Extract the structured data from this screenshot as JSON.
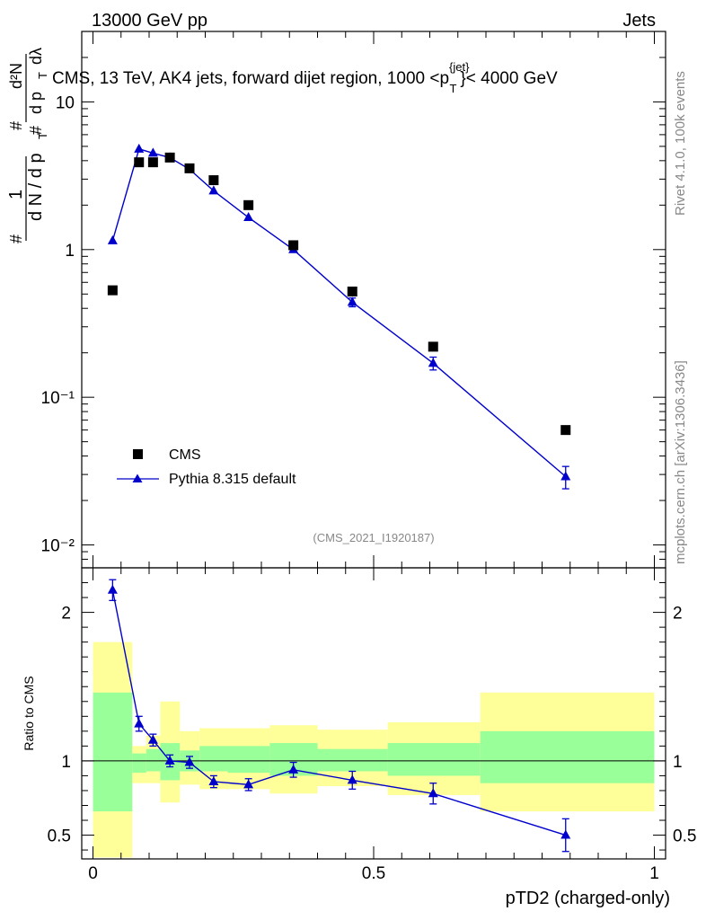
{
  "header": {
    "energy_label": "13000 GeV pp",
    "category_label": "Jets"
  },
  "side_labels": {
    "rivet": "Rivet 4.1.0,  100k events",
    "mcplots": "mcplots.cern.ch [arXiv:1306.3436]"
  },
  "y_axis_label": {
    "hash_top": "#",
    "one": "1",
    "denom": "d N / d p",
    "sub_t": "T",
    "hash_mid": "#",
    "d2n": "d²N",
    "hash_right": "#",
    "dpt_dl": "d p",
    "sub_t2": "T",
    "dlambda": "dλ"
  },
  "chart_data": [
    {
      "type": "scatter",
      "title": "CMS, 13 TeV, AK4 jets, forward dijet region, 1000 <p",
      "title_sup": "{jet}",
      "title_sub": "T",
      "title_tail": "}< 4000 GeV",
      "analysis_id": "(CMS_2021_I1920187)",
      "yscale": "log",
      "xlim": [
        -0.02,
        1.02
      ],
      "ylim": [
        0.007,
        30
      ],
      "y_tick_labels": [
        "10⁻²",
        "10⁻¹",
        "1",
        "10"
      ],
      "series": [
        {
          "name": "CMS",
          "marker": "square",
          "color": "#000000",
          "x": [
            0.035,
            0.082,
            0.107,
            0.137,
            0.172,
            0.215,
            0.277,
            0.357,
            0.462,
            0.606,
            0.842
          ],
          "y": [
            0.53,
            3.9,
            3.9,
            4.2,
            3.55,
            2.95,
            2.0,
            1.07,
            0.52,
            0.22,
            0.06
          ]
        },
        {
          "name": "Pythia 8.315 default",
          "marker": "triangle",
          "color": "#0000cc",
          "x": [
            0.035,
            0.082,
            0.107,
            0.137,
            0.172,
            0.215,
            0.277,
            0.357,
            0.462,
            0.606,
            0.842
          ],
          "y": [
            1.15,
            4.8,
            4.5,
            4.2,
            3.5,
            2.5,
            1.65,
            1.0,
            0.44,
            0.17,
            0.029
          ],
          "yerr": [
            0,
            0,
            0,
            0,
            0,
            0,
            0,
            0.04,
            0.03,
            0.017,
            0.005
          ]
        }
      ]
    },
    {
      "type": "line",
      "ylabel": "Ratio to CMS",
      "xlabel": "pTD2 (charged-only)",
      "xlim": [
        -0.02,
        1.02
      ],
      "ylim": [
        0.34,
        2.3
      ],
      "x_tick_labels": [
        "0",
        "0.5",
        "1"
      ],
      "y_tick_labels": [
        "0.5",
        "1",
        "2"
      ],
      "reference_line": 1.0,
      "bands": {
        "edges": [
          0.0,
          0.07,
          0.095,
          0.12,
          0.155,
          0.19,
          0.24,
          0.315,
          0.4,
          0.525,
          0.69,
          1.0
        ],
        "yellow_lo": [
          0.35,
          0.85,
          0.85,
          0.72,
          0.84,
          0.81,
          0.81,
          0.78,
          0.83,
          0.77,
          0.66
        ],
        "yellow_hi": [
          1.8,
          1.1,
          1.17,
          1.4,
          1.2,
          1.22,
          1.22,
          1.24,
          1.21,
          1.26,
          1.46
        ],
        "green_lo": [
          0.66,
          0.92,
          0.93,
          0.87,
          0.93,
          0.93,
          0.92,
          0.9,
          0.93,
          0.9,
          0.85
        ],
        "green_hi": [
          1.46,
          1.05,
          1.08,
          1.12,
          1.07,
          1.1,
          1.1,
          1.12,
          1.08,
          1.12,
          1.2
        ]
      },
      "series": [
        {
          "name": "Pythia 8.315 default / CMS",
          "color": "#0000cc",
          "x": [
            0.035,
            0.082,
            0.107,
            0.137,
            0.172,
            0.215,
            0.277,
            0.357,
            0.462,
            0.606,
            0.842
          ],
          "y": [
            2.15,
            1.25,
            1.14,
            1.0,
            0.99,
            0.86,
            0.84,
            0.94,
            0.87,
            0.78,
            0.5
          ],
          "yerr": [
            0.07,
            0.05,
            0.04,
            0.04,
            0.04,
            0.04,
            0.04,
            0.05,
            0.06,
            0.07,
            0.11
          ]
        }
      ]
    }
  ]
}
